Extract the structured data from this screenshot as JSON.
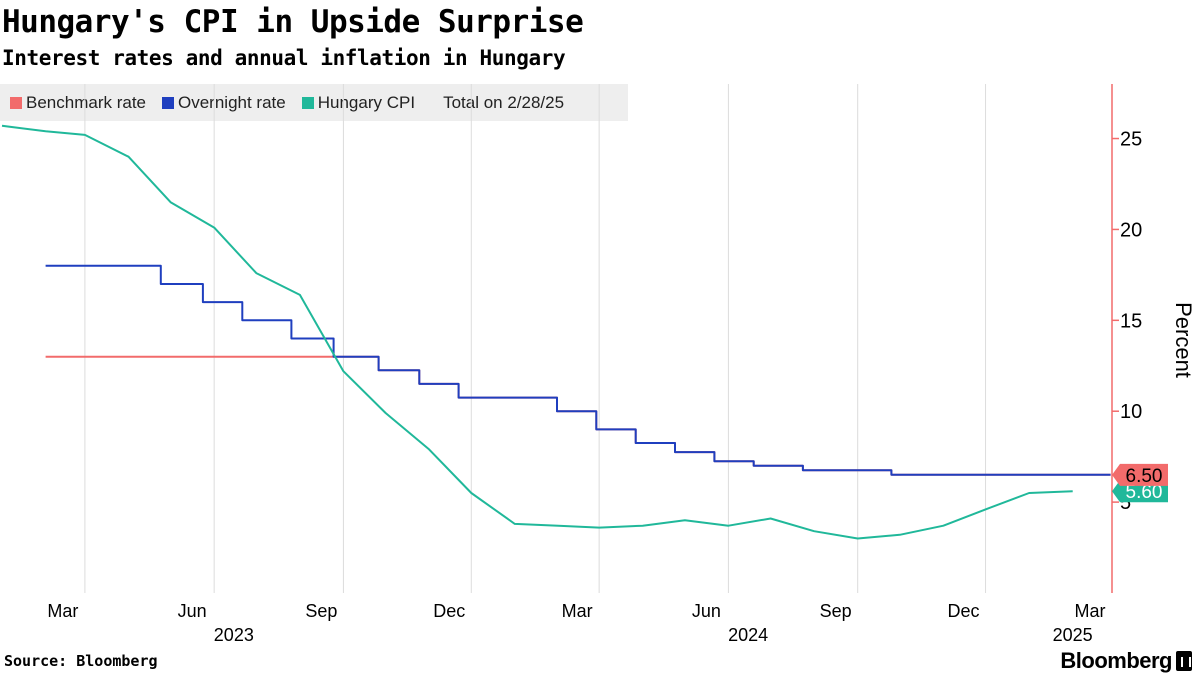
{
  "header": {
    "title": "Hungary's CPI in Upside Surprise",
    "subtitle": "Interest rates and annual inflation in Hungary"
  },
  "legend": {
    "total_label": "Total on 2/28/25"
  },
  "footer": {
    "source": "Source: Bloomberg",
    "brand": "Bloomberg"
  },
  "chart_data": {
    "type": "line",
    "title": "Hungary's CPI in Upside Surprise",
    "subtitle": "Interest rates and annual inflation in Hungary",
    "ylabel": "Percent",
    "xlabel": "",
    "ylim": [
      0,
      28
    ],
    "xlim": [
      "2023-02-01",
      "2025-03-01"
    ],
    "y_ticks": [
      5,
      10,
      15,
      20,
      25
    ],
    "y_axis_position": "right",
    "grid": "vertical",
    "legend_position": "top-left",
    "x_ticks": [
      {
        "date": "2023-03-01",
        "label": "Mar"
      },
      {
        "date": "2023-06-01",
        "label": "Jun"
      },
      {
        "date": "2023-09-01",
        "label": "Sep"
      },
      {
        "date": "2023-12-01",
        "label": "Dec"
      },
      {
        "date": "2024-03-01",
        "label": "Mar"
      },
      {
        "date": "2024-06-01",
        "label": "Jun"
      },
      {
        "date": "2024-09-01",
        "label": "Sep"
      },
      {
        "date": "2024-12-01",
        "label": "Dec"
      },
      {
        "date": "2025-03-01",
        "label": "Mar"
      }
    ],
    "year_labels": [
      {
        "date": "2023-06-15",
        "label": "2023"
      },
      {
        "date": "2024-06-15",
        "label": "2024"
      },
      {
        "date": "2025-02-01",
        "label": "2025"
      }
    ],
    "series": [
      {
        "name": "Benchmark rate",
        "color": "#f26b6b",
        "step": true,
        "last_value": "6.50",
        "points": [
          [
            "2023-02-01",
            13.0
          ],
          [
            "2023-09-24",
            13.0
          ],
          [
            "2023-09-26",
            12.25
          ],
          [
            "2023-10-25",
            11.5
          ],
          [
            "2023-11-22",
            10.75
          ],
          [
            "2024-01-31",
            10.0
          ],
          [
            "2024-02-28",
            9.0
          ],
          [
            "2024-03-27",
            8.25
          ],
          [
            "2024-04-24",
            7.75
          ],
          [
            "2024-05-22",
            7.25
          ],
          [
            "2024-06-19",
            7.0
          ],
          [
            "2024-07-24",
            6.75
          ],
          [
            "2024-09-25",
            6.5
          ],
          [
            "2025-02-28",
            6.5
          ]
        ]
      },
      {
        "name": "Overnight rate",
        "color": "#1f3fbf",
        "step": true,
        "points": [
          [
            "2023-02-01",
            18.0
          ],
          [
            "2023-04-24",
            17.0
          ],
          [
            "2023-05-24",
            16.0
          ],
          [
            "2023-06-21",
            15.0
          ],
          [
            "2023-07-26",
            14.0
          ],
          [
            "2023-08-25",
            13.0
          ],
          [
            "2023-09-26",
            12.25
          ],
          [
            "2023-10-25",
            11.5
          ],
          [
            "2023-11-22",
            10.75
          ],
          [
            "2024-01-31",
            10.0
          ],
          [
            "2024-02-28",
            9.0
          ],
          [
            "2024-03-27",
            8.25
          ],
          [
            "2024-04-24",
            7.75
          ],
          [
            "2024-05-22",
            7.25
          ],
          [
            "2024-06-19",
            7.0
          ],
          [
            "2024-07-24",
            6.75
          ],
          [
            "2024-09-25",
            6.5
          ],
          [
            "2025-02-28",
            6.5
          ]
        ]
      },
      {
        "name": "Hungary CPI",
        "color": "#20b89a",
        "step": false,
        "last_value": "5.60",
        "points": [
          [
            "2023-01-01",
            25.7
          ],
          [
            "2023-02-01",
            25.4
          ],
          [
            "2023-03-01",
            25.2
          ],
          [
            "2023-04-01",
            24.0
          ],
          [
            "2023-05-01",
            21.5
          ],
          [
            "2023-06-01",
            20.1
          ],
          [
            "2023-07-01",
            17.6
          ],
          [
            "2023-08-01",
            16.4
          ],
          [
            "2023-09-01",
            12.2
          ],
          [
            "2023-10-01",
            9.9
          ],
          [
            "2023-11-01",
            7.9
          ],
          [
            "2023-12-01",
            5.5
          ],
          [
            "2024-01-01",
            3.8
          ],
          [
            "2024-02-01",
            3.7
          ],
          [
            "2024-03-01",
            3.6
          ],
          [
            "2024-04-01",
            3.7
          ],
          [
            "2024-05-01",
            4.0
          ],
          [
            "2024-06-01",
            3.7
          ],
          [
            "2024-07-01",
            4.1
          ],
          [
            "2024-08-01",
            3.4
          ],
          [
            "2024-09-01",
            3.0
          ],
          [
            "2024-10-01",
            3.2
          ],
          [
            "2024-11-01",
            3.7
          ],
          [
            "2024-12-01",
            4.6
          ],
          [
            "2025-01-01",
            5.5
          ],
          [
            "2025-02-01",
            5.6
          ]
        ]
      }
    ]
  }
}
